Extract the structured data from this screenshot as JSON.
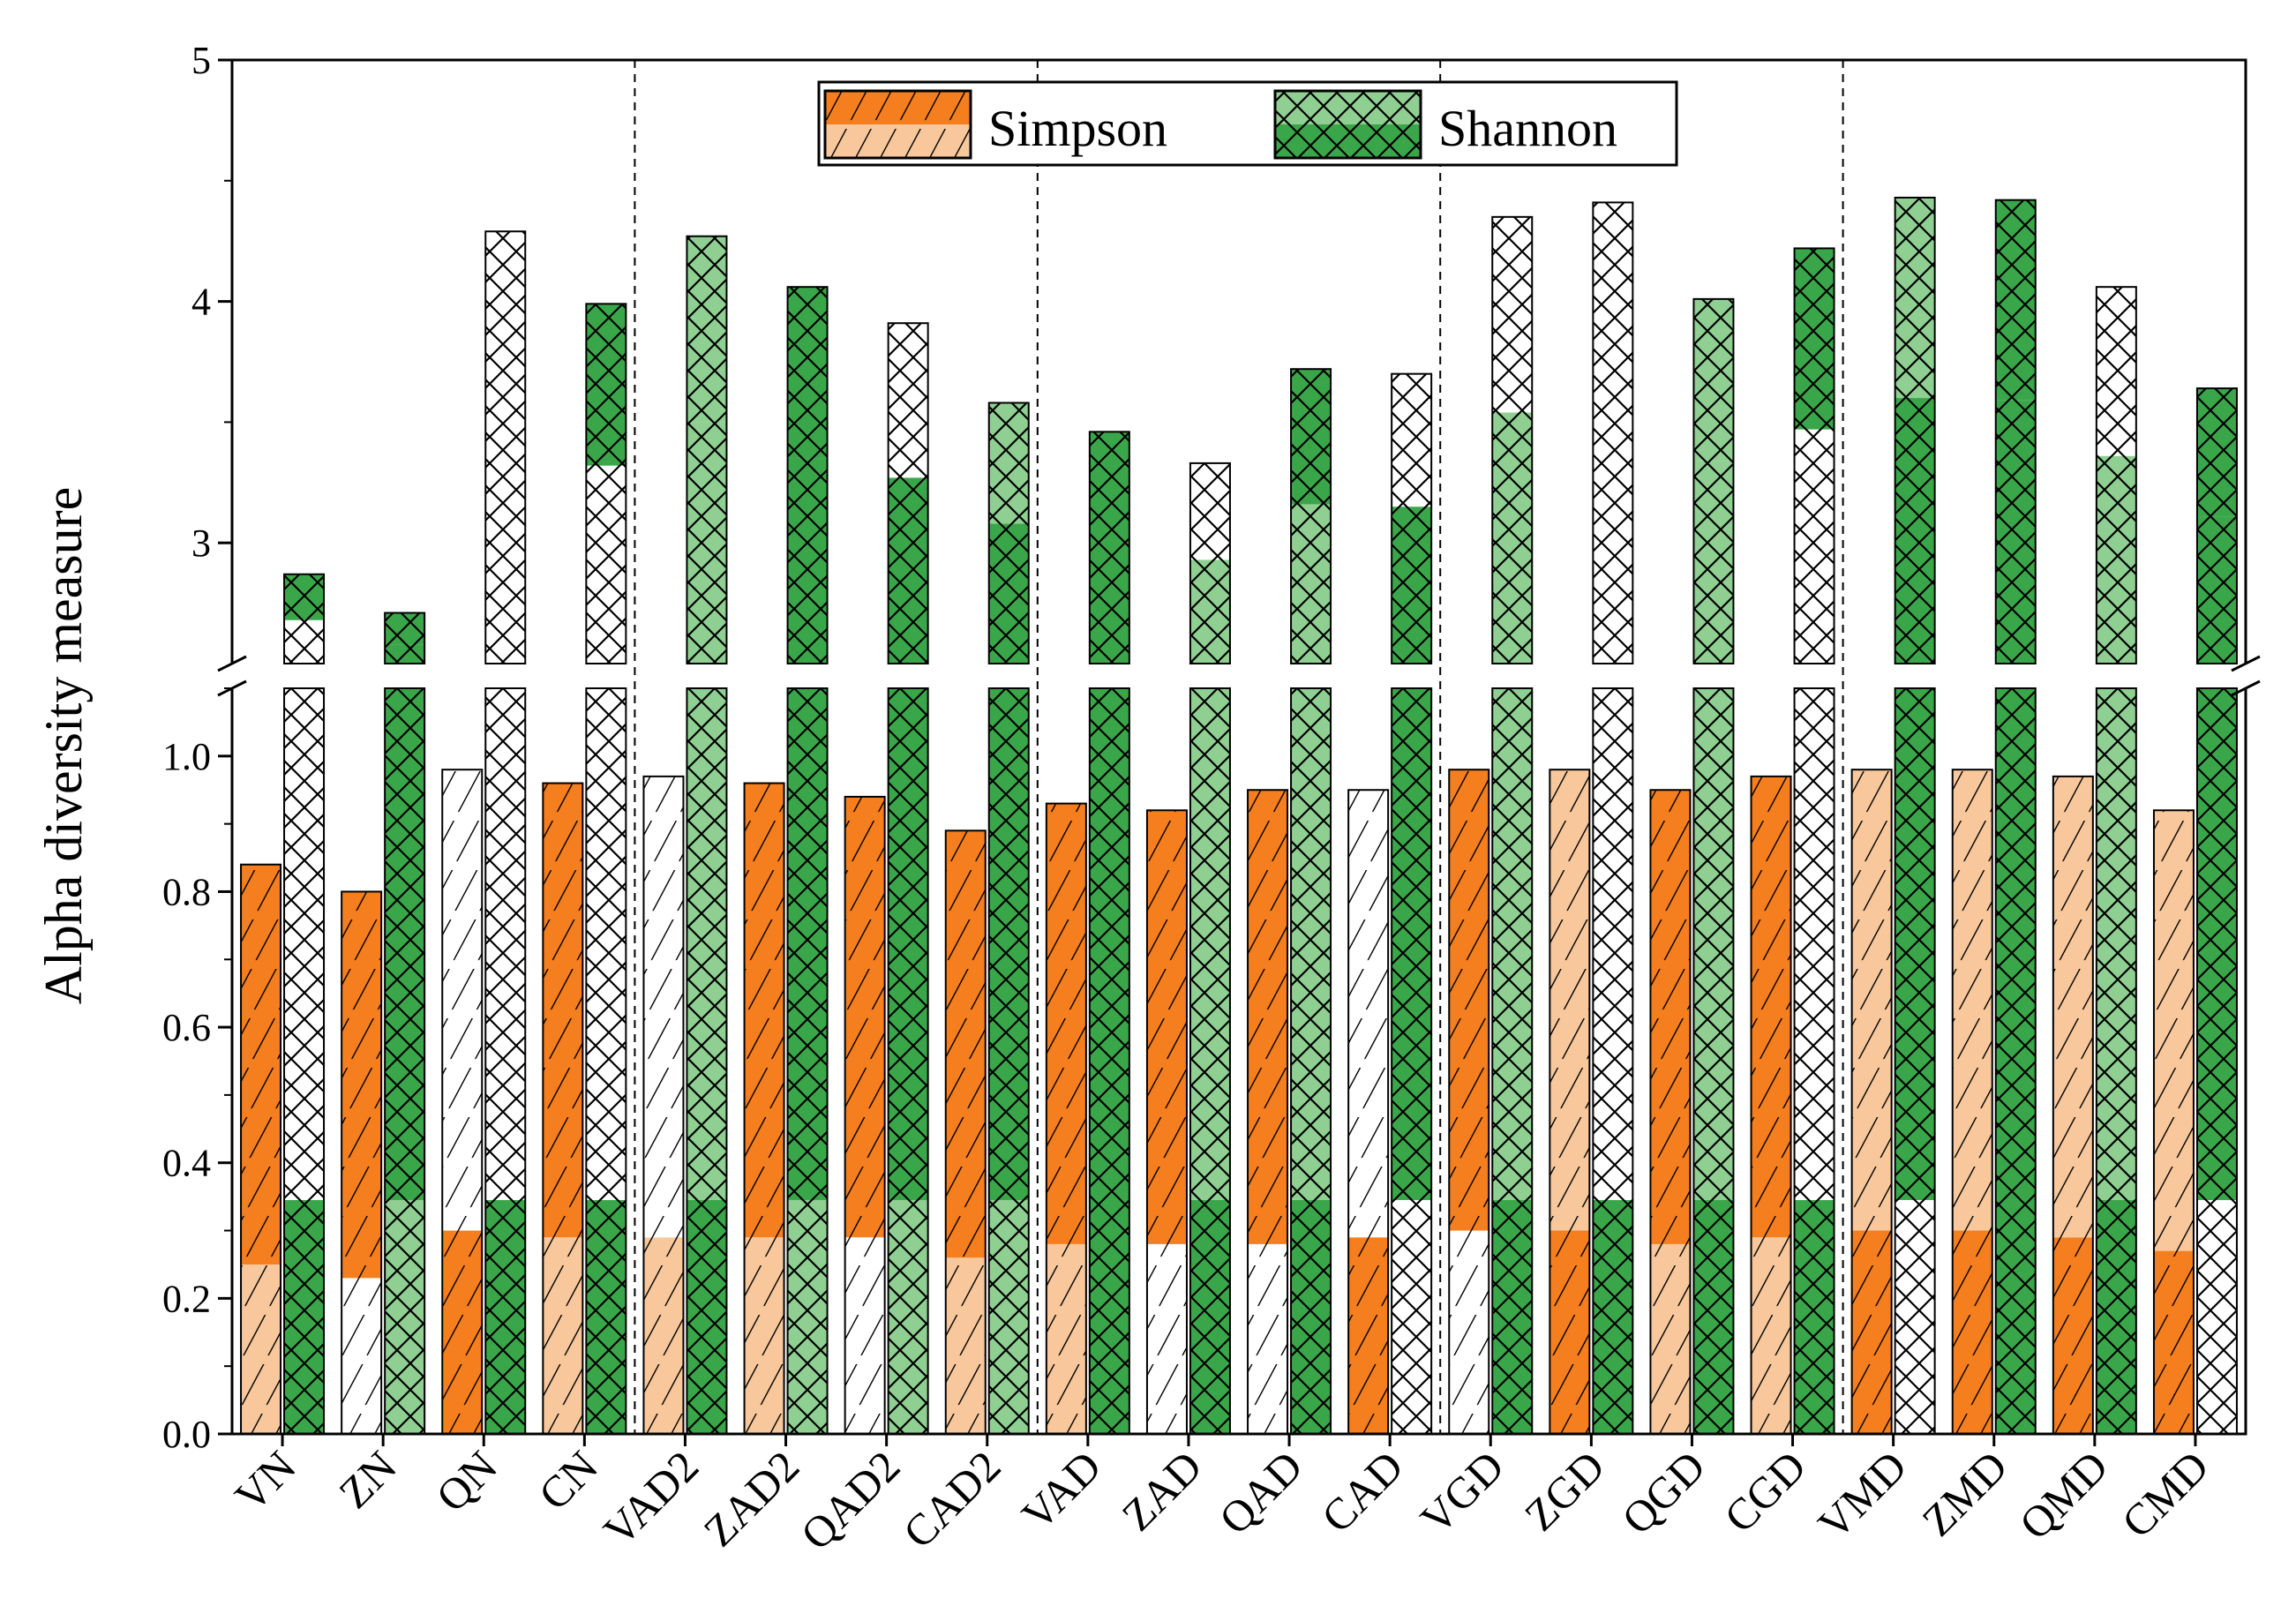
{
  "chart_data": {
    "type": "bar",
    "title": "",
    "xlabel": "",
    "ylabel": "Alpha diversity measure",
    "categories": [
      "VN",
      "ZN",
      "QN",
      "CN",
      "VAD2",
      "ZAD2",
      "QAD2",
      "CAD2",
      "VAD",
      "ZAD",
      "QAD",
      "CAD",
      "VGD",
      "ZGD",
      "QGD",
      "CGD",
      "VMD",
      "ZMD",
      "QMD",
      "CMD"
    ],
    "series": [
      {
        "name": "Simpson",
        "values": [
          0.84,
          0.8,
          0.98,
          0.96,
          0.97,
          0.96,
          0.94,
          0.89,
          0.93,
          0.92,
          0.95,
          0.95,
          0.98,
          0.98,
          0.95,
          0.97,
          0.98,
          0.98,
          0.97,
          0.92
        ],
        "lower": [
          0.25,
          0.23,
          0.3,
          0.29,
          0.29,
          0.29,
          0.29,
          0.26,
          0.28,
          0.28,
          0.28,
          0.29,
          0.3,
          0.3,
          0.28,
          0.29,
          0.3,
          0.3,
          0.29,
          0.27
        ],
        "fill_bottom": [
          "light",
          "white",
          "orange",
          "light",
          "light",
          "light",
          "white",
          "light",
          "light",
          "white",
          "white",
          "orange",
          "white",
          "orange",
          "light",
          "light",
          "orange",
          "orange",
          "orange",
          "orange"
        ],
        "fill_top": [
          "orange",
          "orange",
          "white",
          "orange",
          "white",
          "orange",
          "orange",
          "orange",
          "orange",
          "orange",
          "orange",
          "white",
          "orange",
          "light",
          "orange",
          "orange",
          "light",
          "light",
          "light",
          "light"
        ]
      },
      {
        "name": "Shannon",
        "values": [
          2.87,
          2.71,
          4.29,
          3.99,
          4.27,
          4.06,
          3.91,
          3.58,
          3.46,
          3.33,
          3.72,
          3.7,
          4.35,
          4.41,
          4.01,
          4.22,
          4.43,
          4.42,
          4.06,
          3.64
        ],
        "lower": [
          0.345,
          0.345,
          0.345,
          0.345,
          0.345,
          0.345,
          0.345,
          0.345,
          0.345,
          0.345,
          0.345,
          0.345,
          0.345,
          0.345,
          0.345,
          0.345,
          0.345,
          0.345,
          0.345,
          0.345
        ],
        "mid": [
          2.68,
          2.58,
          3.51,
          3.32,
          3.5,
          3.35,
          3.27,
          3.08,
          3.01,
          2.93,
          3.16,
          3.15,
          3.54,
          3.58,
          3.34,
          3.47,
          3.6,
          3.59,
          3.36,
          3.11
        ],
        "fill_bottom": [
          "green",
          "light",
          "green",
          "green",
          "green",
          "light",
          "light",
          "light",
          "green",
          "green",
          "green",
          "white",
          "green",
          "green",
          "green",
          "green",
          "white",
          "green",
          "green",
          "white"
        ],
        "fill_middle": [
          "white",
          "green",
          "white",
          "white",
          "light",
          "green",
          "green",
          "green",
          "green",
          "light",
          "light",
          "green",
          "light",
          "white",
          "light",
          "white",
          "green",
          "green",
          "light",
          "green"
        ],
        "fill_top": [
          "green",
          "green",
          "white",
          "green",
          "light",
          "green",
          "white",
          "light",
          "green",
          "white",
          "green",
          "white",
          "white",
          "white",
          "light",
          "green",
          "light",
          "green",
          "white",
          "green"
        ]
      }
    ],
    "ylim_bottom": [
      0,
      1.1
    ],
    "ylim_top": [
      2.5,
      5
    ],
    "yticks_bottom": [
      "0.0",
      "0.2",
      "0.4",
      "0.6",
      "0.8",
      "1.0"
    ],
    "yticks_top": [
      "3",
      "4",
      "5"
    ],
    "group_separators_after": [
      4,
      8,
      12,
      16
    ],
    "legend": {
      "position": "top-center",
      "entries": [
        "Simpson",
        "Shannon"
      ]
    },
    "colors": {
      "orange": "#f57e1e",
      "light_orange": "#f8c89c",
      "green": "#3aa64a",
      "light_green": "#8fcf92",
      "white": "#ffffff",
      "hatch": "#000000"
    }
  }
}
